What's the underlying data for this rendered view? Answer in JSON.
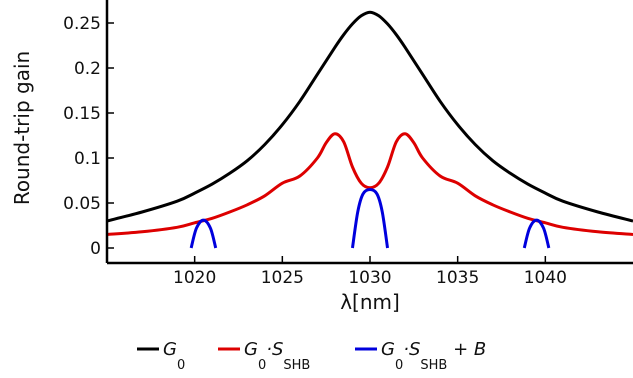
{
  "chart_data": {
    "type": "line",
    "xlabel": "λ[nm]",
    "ylabel": "Round-trip gain",
    "xlim": [
      1015,
      1045
    ],
    "ylim": [
      0,
      0.26
    ],
    "xticks": [
      1020,
      1025,
      1030,
      1035,
      1040
    ],
    "xtick_labels": [
      "1020",
      "1025",
      "1030",
      "1035",
      "1040"
    ],
    "yticks": [
      0,
      0.05,
      0.1,
      0.15,
      0.2,
      0.25
    ],
    "ytick_labels": [
      "0",
      "0.05",
      "0.1",
      "0.15",
      "0.2",
      "0.25"
    ],
    "grid": false,
    "legend_position": "bottom",
    "series": [
      {
        "name": "G0",
        "legend": {
          "main": "G",
          "sub": "0",
          "extra": ""
        },
        "color": "#000000",
        "x": [
          1015,
          1017,
          1019,
          1020,
          1021,
          1022,
          1023,
          1024,
          1025,
          1026,
          1027,
          1028,
          1028.5,
          1029,
          1029.5,
          1030,
          1030.5,
          1031,
          1031.5,
          1032,
          1033,
          1034,
          1035,
          1036,
          1037,
          1038,
          1039,
          1040,
          1041,
          1043,
          1045
        ],
        "y": [
          0.03,
          0.04,
          0.052,
          0.061,
          0.071,
          0.083,
          0.097,
          0.115,
          0.137,
          0.163,
          0.193,
          0.223,
          0.237,
          0.249,
          0.258,
          0.262,
          0.258,
          0.249,
          0.237,
          0.223,
          0.193,
          0.163,
          0.137,
          0.115,
          0.097,
          0.083,
          0.071,
          0.061,
          0.052,
          0.04,
          0.03
        ]
      },
      {
        "name": "G0·SSHB",
        "legend": {
          "main": "G",
          "sub": "0",
          "mid": "·S",
          "sub2": "SHB",
          "extra": ""
        },
        "color": "#dd0000",
        "x": [
          1015,
          1017,
          1019,
          1020,
          1021,
          1022,
          1023,
          1024,
          1025,
          1026,
          1027,
          1027.5,
          1028,
          1028.5,
          1029,
          1029.5,
          1030,
          1030.5,
          1031,
          1031.5,
          1032,
          1032.5,
          1033,
          1034,
          1035,
          1036,
          1037,
          1038,
          1039,
          1040,
          1041,
          1043,
          1045
        ],
        "y": [
          0.015,
          0.018,
          0.023,
          0.028,
          0.033,
          0.04,
          0.048,
          0.058,
          0.072,
          0.08,
          0.1,
          0.117,
          0.127,
          0.118,
          0.09,
          0.072,
          0.067,
          0.072,
          0.09,
          0.118,
          0.127,
          0.117,
          0.1,
          0.08,
          0.072,
          0.058,
          0.048,
          0.04,
          0.033,
          0.028,
          0.023,
          0.018,
          0.015
        ]
      },
      {
        "name": "G0·SSHB+B",
        "legend": {
          "main": "G",
          "sub": "0",
          "mid": "·S",
          "sub2": "SHB",
          "extra": "+ B"
        },
        "color": "#0000dd",
        "segments": [
          {
            "x": [
              1019.8,
              1020.1,
              1020.5,
              1020.9,
              1021.2
            ],
            "y": [
              0,
              0.022,
              0.031,
              0.022,
              0
            ]
          },
          {
            "x": [
              1029.0,
              1029.3,
              1029.6,
              1030.0,
              1030.4,
              1030.7,
              1031.0
            ],
            "y": [
              0,
              0.04,
              0.06,
              0.065,
              0.06,
              0.04,
              0
            ]
          },
          {
            "x": [
              1038.8,
              1039.1,
              1039.5,
              1039.9,
              1040.2
            ],
            "y": [
              0,
              0.022,
              0.031,
              0.022,
              0
            ]
          }
        ]
      }
    ]
  }
}
